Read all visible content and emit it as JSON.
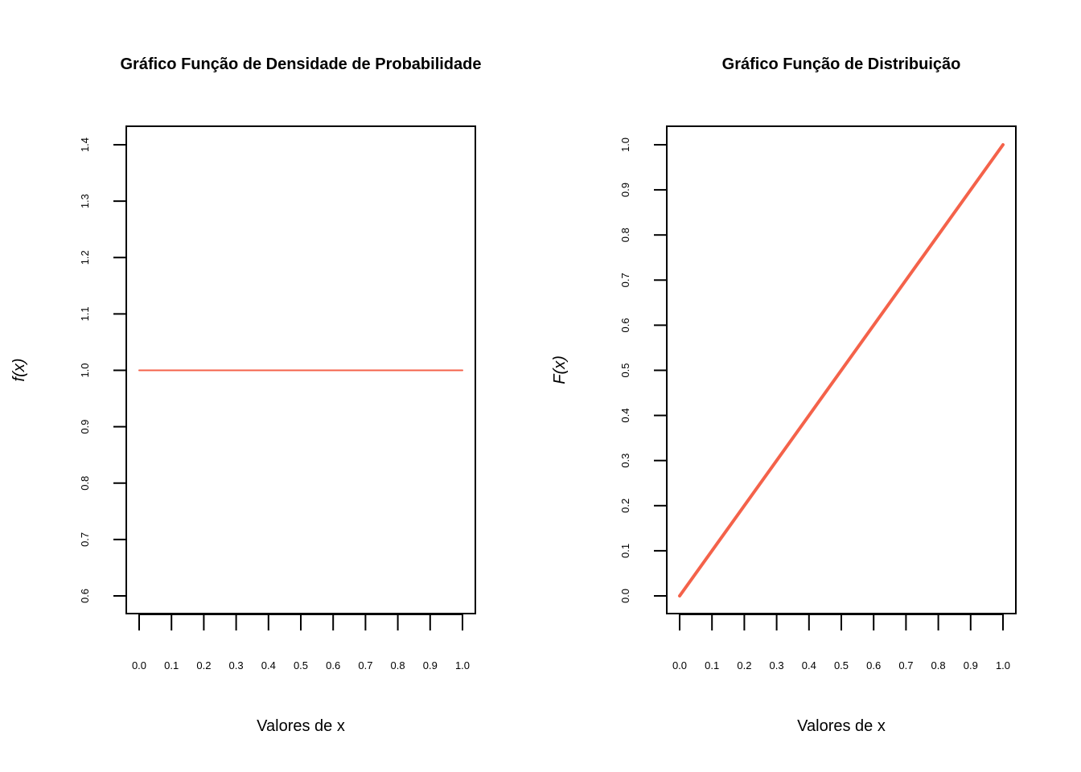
{
  "chart_data": [
    {
      "type": "line",
      "title": "Gráfico Função de Densidade de Probabilidade",
      "xlabel": "Valores de x",
      "ylabel": "f(x)",
      "xlim": [
        0,
        1
      ],
      "ylim": [
        0.6,
        1.4
      ],
      "x_ticks": [
        "0.0",
        "0.1",
        "0.2",
        "0.3",
        "0.4",
        "0.5",
        "0.6",
        "0.7",
        "0.8",
        "0.9",
        "1.0"
      ],
      "y_ticks": [
        "0.6",
        "0.7",
        "0.8",
        "0.9",
        "1.0",
        "1.1",
        "1.2",
        "1.3",
        "1.4"
      ],
      "grid": false,
      "series": [
        {
          "x": [
            0,
            1
          ],
          "y": [
            1,
            1
          ],
          "color": "#f4624a"
        }
      ]
    },
    {
      "type": "line",
      "title": "Gráfico Função de Distribuição",
      "xlabel": "Valores de x",
      "ylabel": "F(x)",
      "xlim": [
        0,
        1
      ],
      "ylim": [
        0,
        1
      ],
      "x_ticks": [
        "0.0",
        "0.1",
        "0.2",
        "0.3",
        "0.4",
        "0.5",
        "0.6",
        "0.7",
        "0.8",
        "0.9",
        "1.0"
      ],
      "y_ticks": [
        "0.0",
        "0.1",
        "0.2",
        "0.3",
        "0.4",
        "0.5",
        "0.6",
        "0.7",
        "0.8",
        "0.9",
        "1.0"
      ],
      "grid": false,
      "series": [
        {
          "x": [
            0,
            1
          ],
          "y": [
            0,
            1
          ],
          "color": "#f4624a"
        }
      ]
    }
  ]
}
